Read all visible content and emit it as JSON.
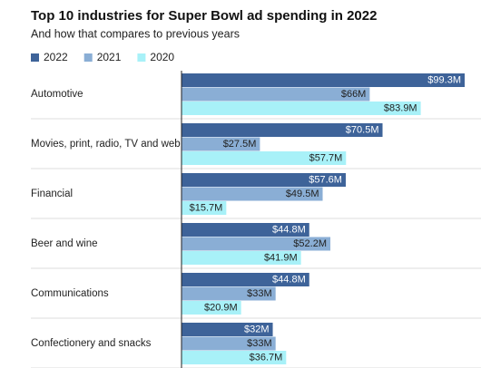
{
  "chart_data": {
    "type": "bar",
    "orientation": "horizontal",
    "title": "Top 10 industries for Super Bowl ad spending in 2022",
    "subtitle": "And how that compares to previous years",
    "categories": [
      "Automotive",
      "Movies, print, radio, TV and web",
      "Financial",
      "Beer and wine",
      "Communications",
      "Confectionery and snacks"
    ],
    "series": [
      {
        "name": "2022",
        "color": "#3e6399",
        "values": [
          99.3,
          70.5,
          57.6,
          44.8,
          44.8,
          32
        ],
        "value_labels": [
          "$99.3M",
          "$70.5M",
          "$57.6M",
          "$44.8M",
          "$44.8M",
          "$32M"
        ]
      },
      {
        "name": "2021",
        "color": "#8aaed5",
        "values": [
          66,
          27.5,
          49.5,
          52.2,
          33,
          33
        ],
        "value_labels": [
          "$66M",
          "$27.5M",
          "$49.5M",
          "$52.2M",
          "$33M",
          "$33M"
        ]
      },
      {
        "name": "2020",
        "color": "#a8f1f8",
        "values": [
          83.9,
          57.7,
          15.7,
          41.9,
          20.9,
          36.7
        ],
        "value_labels": [
          "$83.9M",
          "$57.7M",
          "$15.7M",
          "$41.9M",
          "$20.9M",
          "$36.7M"
        ]
      }
    ]
  }
}
